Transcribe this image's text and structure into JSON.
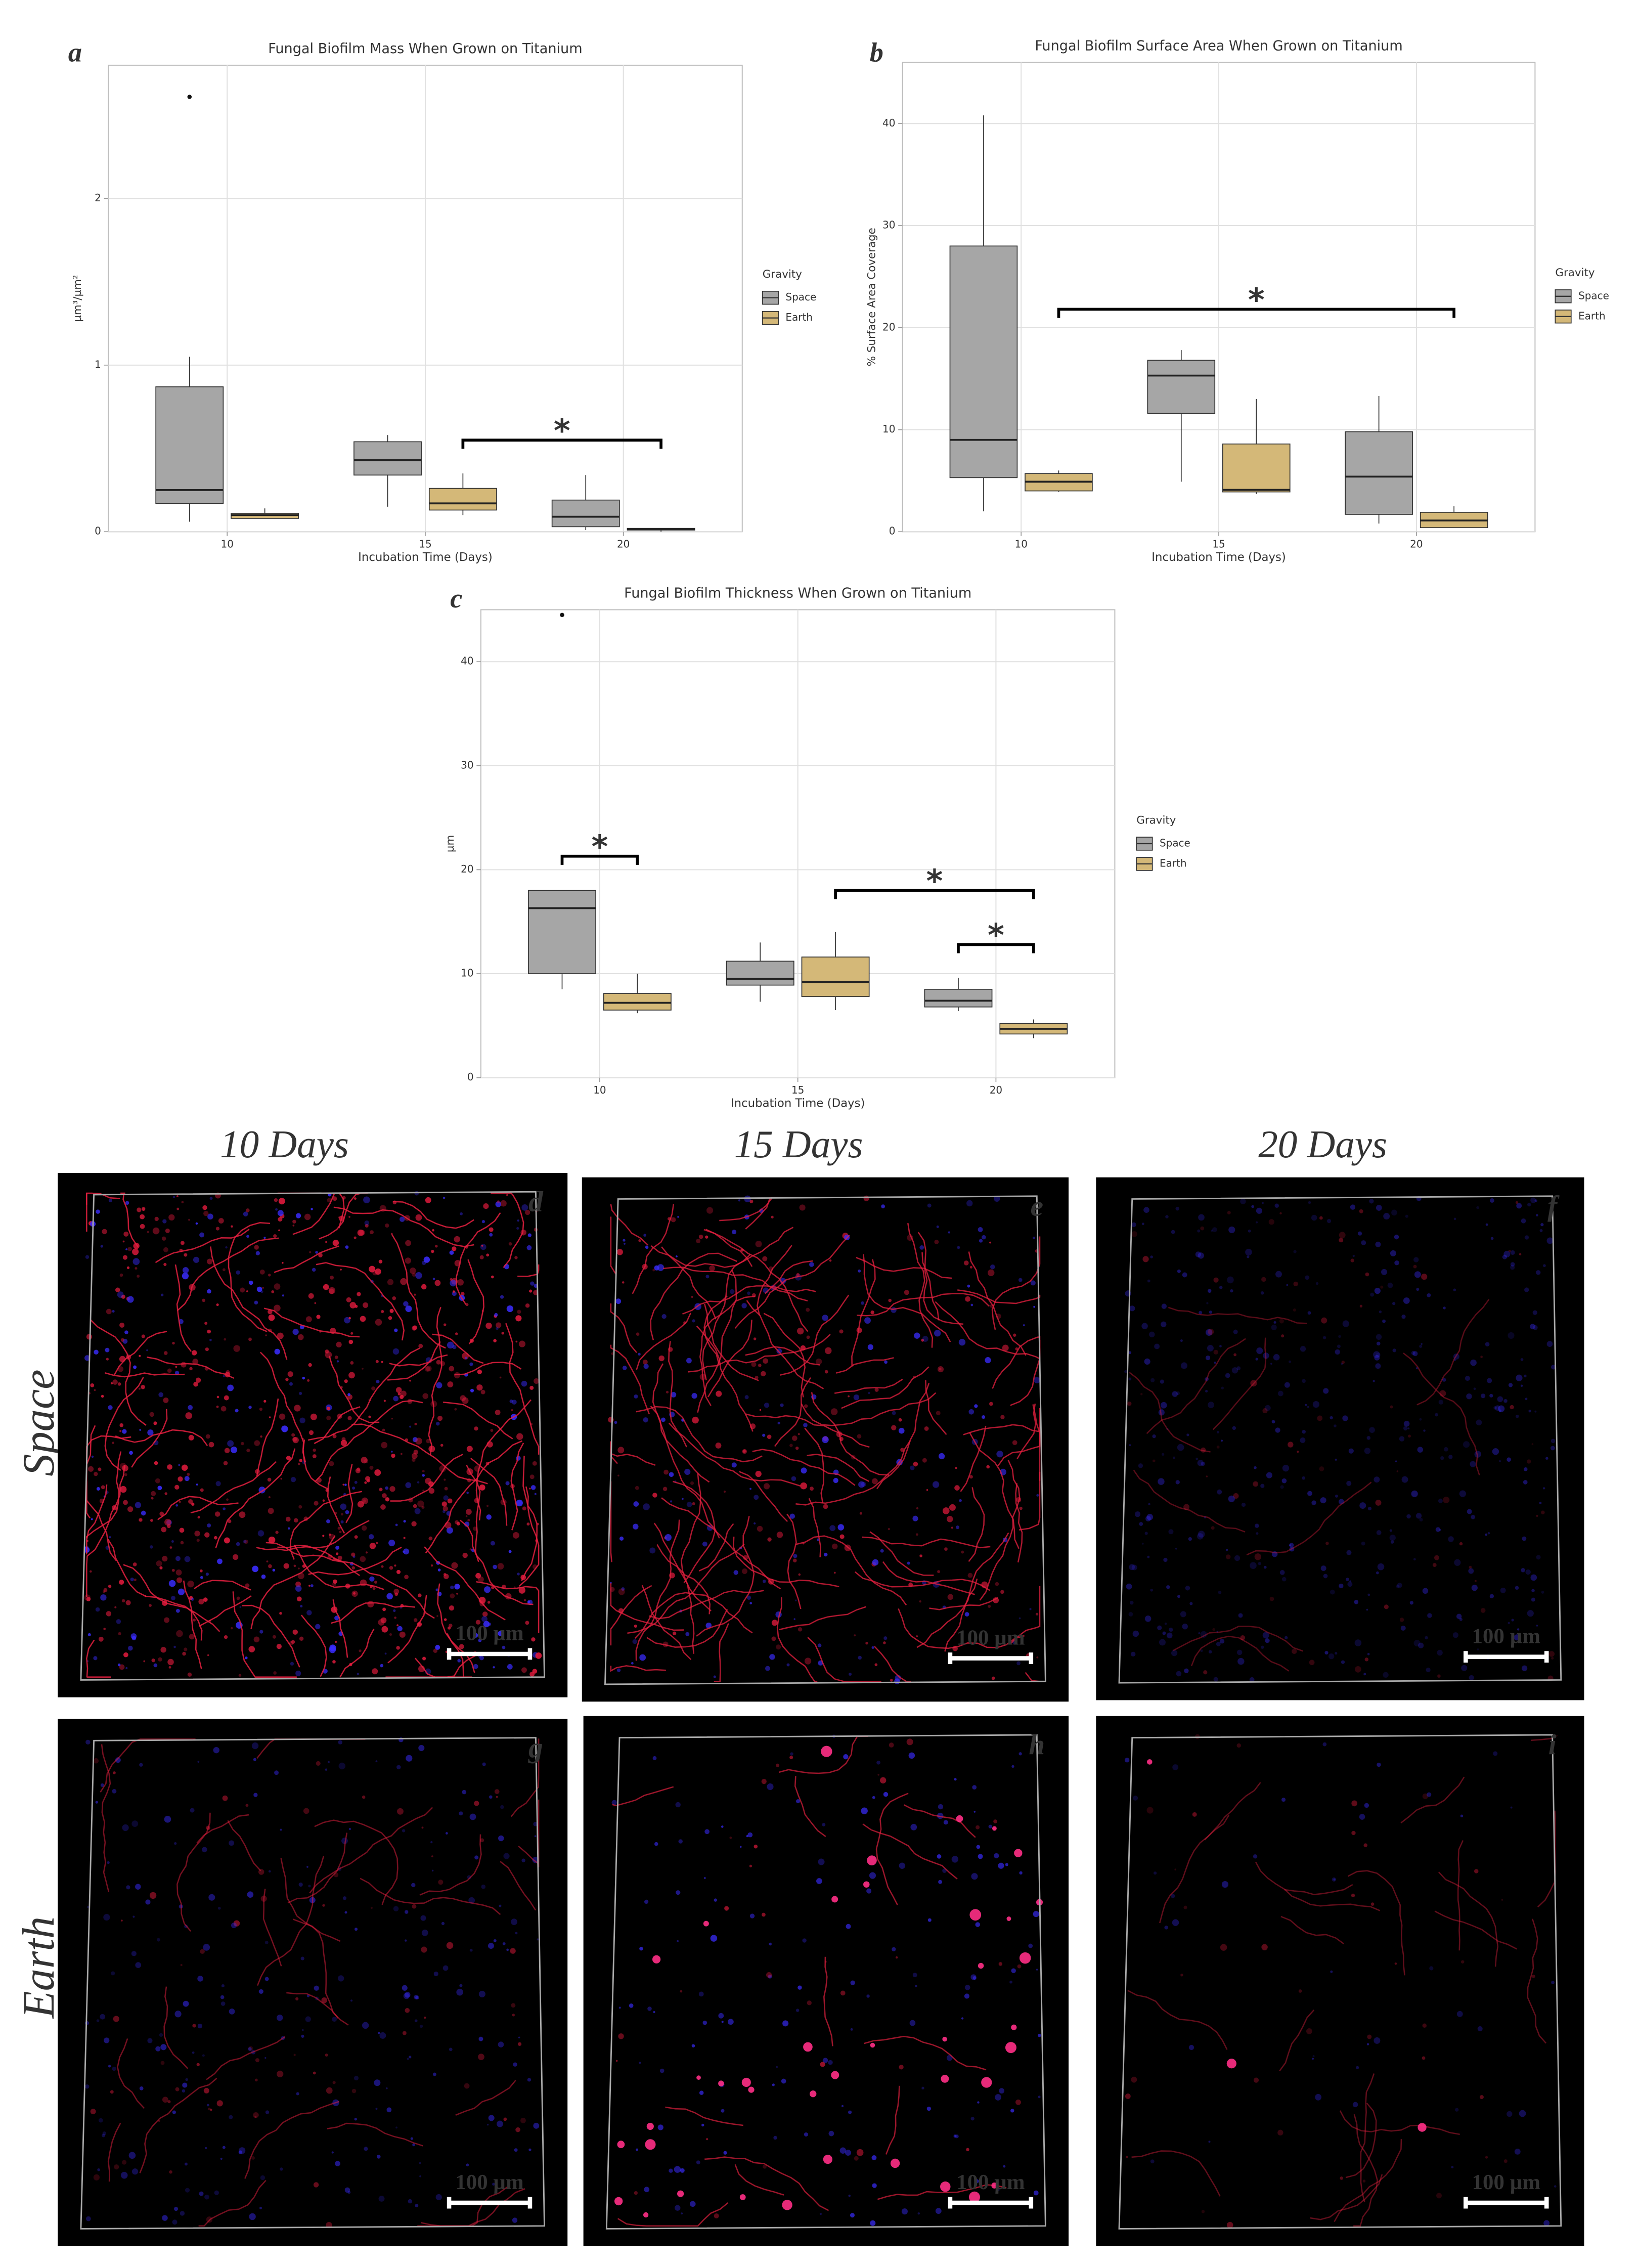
{
  "chart_data": [
    {
      "type": "boxplot",
      "label": "a",
      "title": "Fungal Biofilm Mass When Grown on Titanium",
      "x_label": "Incubation Time (Days)",
      "y_label": "µm³/µm²",
      "categories": [
        "10",
        "15",
        "20"
      ],
      "ylim": [
        0,
        2.8
      ],
      "yticks": [
        0,
        1,
        2
      ],
      "grid": true,
      "legend_title": "Gravity",
      "series": [
        {
          "name": "Space",
          "color": "#a6a6a6",
          "values": [
            {
              "min": 0.06,
              "q1": 0.17,
              "median": 0.25,
              "q3": 0.87,
              "max": 1.05,
              "outliers": [
                2.61
              ]
            },
            {
              "min": 0.15,
              "q1": 0.34,
              "median": 0.43,
              "q3": 0.54,
              "max": 0.58,
              "outliers": []
            },
            {
              "min": 0.01,
              "q1": 0.03,
              "median": 0.09,
              "q3": 0.19,
              "max": 0.34,
              "outliers": []
            }
          ]
        },
        {
          "name": "Earth",
          "color": "#d4b878",
          "values": [
            {
              "min": 0.08,
              "q1": 0.08,
              "median": 0.1,
              "q3": 0.11,
              "max": 0.14,
              "outliers": []
            },
            {
              "min": 0.1,
              "q1": 0.13,
              "median": 0.17,
              "q3": 0.26,
              "max": 0.35,
              "outliers": []
            },
            {
              "min": 0.0,
              "q1": 0.01,
              "median": 0.015,
              "q3": 0.02,
              "max": 0.02,
              "outliers": []
            }
          ]
        }
      ],
      "annotations": [
        {
          "text": "*",
          "y": 0.55,
          "from": [
            "15",
            "Earth"
          ],
          "to": [
            "20",
            "Earth"
          ]
        }
      ]
    },
    {
      "type": "boxplot",
      "label": "b",
      "title": "Fungal Biofilm Surface Area When Grown on Titanium",
      "x_label": "Incubation Time (Days)",
      "y_label": "% Surface Area Coverage",
      "categories": [
        "10",
        "15",
        "20"
      ],
      "ylim": [
        0,
        46
      ],
      "yticks": [
        0,
        10,
        20,
        30,
        40
      ],
      "grid": true,
      "legend_title": "Gravity",
      "series": [
        {
          "name": "Space",
          "color": "#a6a6a6",
          "values": [
            {
              "min": 2,
              "q1": 5.3,
              "median": 9,
              "q3": 28,
              "max": 40.8,
              "outliers": []
            },
            {
              "min": 4.9,
              "q1": 11.6,
              "median": 15.3,
              "q3": 16.8,
              "max": 17.8,
              "outliers": []
            },
            {
              "min": 0.8,
              "q1": 1.7,
              "median": 5.4,
              "q3": 9.8,
              "max": 13.3,
              "outliers": []
            }
          ]
        },
        {
          "name": "Earth",
          "color": "#d4b878",
          "values": [
            {
              "min": 3.9,
              "q1": 4,
              "median": 4.9,
              "q3": 5.7,
              "max": 6,
              "outliers": []
            },
            {
              "min": 3.7,
              "q1": 3.9,
              "median": 4.1,
              "q3": 8.6,
              "max": 13,
              "outliers": []
            },
            {
              "min": 0.4,
              "q1": 0.4,
              "median": 1.1,
              "q3": 1.9,
              "max": 2.5,
              "outliers": []
            }
          ]
        }
      ],
      "annotations": [
        {
          "text": "*",
          "y": 21.8,
          "from": [
            "10",
            "Earth"
          ],
          "to": [
            "20",
            "Earth"
          ]
        }
      ]
    },
    {
      "type": "boxplot",
      "label": "c",
      "title": "Fungal Biofilm Thickness When Grown on Titanium",
      "x_label": "Incubation Time (Days)",
      "y_label": "µm",
      "categories": [
        "10",
        "15",
        "20"
      ],
      "ylim": [
        0,
        45
      ],
      "yticks": [
        0,
        10,
        20,
        30,
        40
      ],
      "grid": true,
      "legend_title": "Gravity",
      "series": [
        {
          "name": "Space",
          "color": "#a6a6a6",
          "values": [
            {
              "min": 8.5,
              "q1": 10,
              "median": 16.3,
              "q3": 18,
              "max": 18,
              "outliers": [
                44.5
              ]
            },
            {
              "min": 7.3,
              "q1": 8.9,
              "median": 9.5,
              "q3": 11.2,
              "max": 13,
              "outliers": []
            },
            {
              "min": 6.4,
              "q1": 6.8,
              "median": 7.4,
              "q3": 8.5,
              "max": 9.6,
              "outliers": []
            }
          ]
        },
        {
          "name": "Earth",
          "color": "#d4b878",
          "values": [
            {
              "min": 6.2,
              "q1": 6.5,
              "median": 7.2,
              "q3": 8.1,
              "max": 10,
              "outliers": []
            },
            {
              "min": 6.5,
              "q1": 7.8,
              "median": 9.2,
              "q3": 11.6,
              "max": 14,
              "outliers": []
            },
            {
              "min": 3.8,
              "q1": 4.2,
              "median": 4.7,
              "q3": 5.2,
              "max": 5.6,
              "outliers": []
            }
          ]
        }
      ],
      "annotations": [
        {
          "text": "*",
          "y": 21.3,
          "from": [
            "10",
            "Space"
          ],
          "to": [
            "10",
            "Earth"
          ]
        },
        {
          "text": "*",
          "y": 18,
          "from": [
            "15",
            "Earth"
          ],
          "to": [
            "20",
            "Earth"
          ]
        },
        {
          "text": "*",
          "y": 12.8,
          "from": [
            "20",
            "Space"
          ],
          "to": [
            "20",
            "Earth"
          ]
        }
      ]
    }
  ],
  "micrographs": {
    "columns": [
      "10 Days",
      "15 Days",
      "20 Days"
    ],
    "rows": [
      "Space",
      "Earth"
    ],
    "panels": [
      {
        "label": "d",
        "scale": "100 µm"
      },
      {
        "label": "e",
        "scale": "100 µm"
      },
      {
        "label": "f",
        "scale": "100 µm"
      },
      {
        "label": "g",
        "scale": "100 µm"
      },
      {
        "label": "h",
        "scale": "100 µm"
      },
      {
        "label": "i",
        "scale": "100 µm"
      }
    ]
  }
}
